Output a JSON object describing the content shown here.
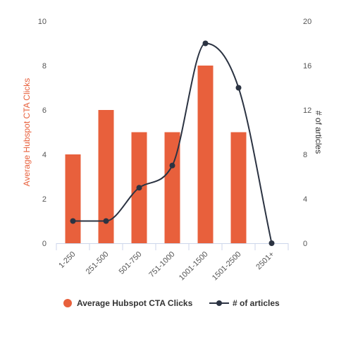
{
  "chart_data": {
    "type": "bar",
    "categories": [
      "1-250",
      "251-500",
      "501-750",
      "751-1000",
      "1001-1500",
      "1501-2500",
      "2501+"
    ],
    "series": [
      {
        "name": "Average Hubspot CTA Clicks",
        "type": "bar",
        "axis": "left",
        "color": "#E8603C",
        "values": [
          4,
          6,
          5,
          5,
          8,
          5,
          null
        ]
      },
      {
        "name": "# of articles",
        "type": "line",
        "smooth": true,
        "axis": "right",
        "color": "#2B3342",
        "values": [
          2,
          2,
          5,
          7,
          18,
          14,
          0
        ]
      }
    ],
    "y_left": {
      "label": "Average Hubspot CTA Clicks",
      "color": "#E8603C",
      "ylim": [
        0,
        10
      ],
      "ticks": [
        0,
        2,
        4,
        6,
        8,
        10
      ]
    },
    "y_right": {
      "label": "# of articles",
      "color": "#333333",
      "ylim": [
        0,
        20
      ],
      "ticks": [
        0,
        4,
        8,
        12,
        16,
        20
      ]
    },
    "xlabel": "",
    "grid": false,
    "legend_position": "bottom-center"
  }
}
